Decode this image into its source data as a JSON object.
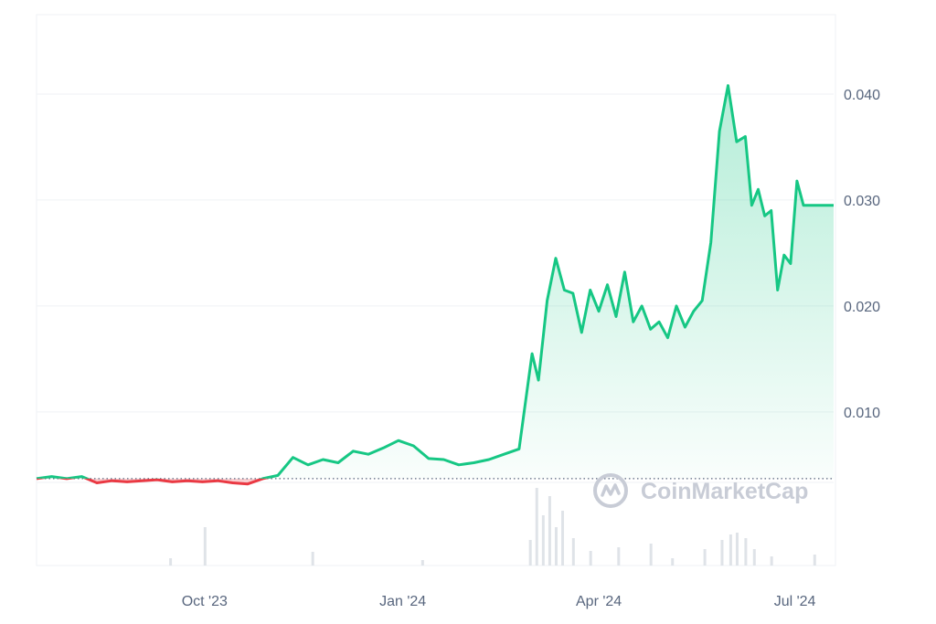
{
  "colors": {
    "up": "#16c784",
    "down": "#ea3943",
    "grid": "#eff2f5",
    "axis_text": "#58667e",
    "volume": "#dfe3e8",
    "watermark": "#c8ccd6"
  },
  "watermark": {
    "text": "CoinMarketCap",
    "icon": "coinmarketcap-logo-icon"
  },
  "chart_data": {
    "type": "area",
    "title": "",
    "xlabel": "",
    "ylabel": "",
    "x_ticks": [
      "Oct '23",
      "Jan '24",
      "Apr '24",
      "Jul '24"
    ],
    "y_ticks": [
      "0.010",
      "0.020",
      "0.030",
      "0.040"
    ],
    "ylim": [
      -0.0045,
      0.0475
    ],
    "grid": true,
    "baseline": 0.0037,
    "legend": "none",
    "series": [
      {
        "x": [
          "2023-07-15",
          "2023-07-22",
          "2023-07-29",
          "2023-08-05",
          "2023-08-12",
          "2023-08-19",
          "2023-08-26",
          "2023-09-02",
          "2023-09-09",
          "2023-09-16",
          "2023-09-23",
          "2023-09-30",
          "2023-10-07",
          "2023-10-14",
          "2023-10-21",
          "2023-10-28",
          "2023-11-04",
          "2023-11-11",
          "2023-11-18",
          "2023-11-25",
          "2023-12-02",
          "2023-12-09",
          "2023-12-16",
          "2023-12-23",
          "2023-12-30",
          "2024-01-06",
          "2024-01-13",
          "2024-01-20",
          "2024-01-27",
          "2024-02-03",
          "2024-02-10",
          "2024-02-17",
          "2024-02-24",
          "2024-03-01",
          "2024-03-04",
          "2024-03-08",
          "2024-03-12",
          "2024-03-16",
          "2024-03-20",
          "2024-03-24",
          "2024-03-28",
          "2024-04-01",
          "2024-04-05",
          "2024-04-09",
          "2024-04-13",
          "2024-04-17",
          "2024-04-21",
          "2024-04-25",
          "2024-04-29",
          "2024-05-03",
          "2024-05-07",
          "2024-05-11",
          "2024-05-15",
          "2024-05-19",
          "2024-05-23",
          "2024-05-27",
          "2024-05-31",
          "2024-06-04",
          "2024-06-08",
          "2024-06-11",
          "2024-06-14",
          "2024-06-17",
          "2024-06-20",
          "2024-06-23",
          "2024-06-26",
          "2024-06-29",
          "2024-07-02",
          "2024-07-05",
          "2024-07-08",
          "2024-07-11",
          "2024-07-14",
          "2024-07-17",
          "2024-07-19"
        ],
        "values": [
          0.0037,
          0.0039,
          0.0037,
          0.0039,
          0.0033,
          0.0035,
          0.0034,
          0.0035,
          0.0036,
          0.0034,
          0.0035,
          0.0034,
          0.0035,
          0.0033,
          0.0032,
          0.0037,
          0.004,
          0.0057,
          0.005,
          0.0055,
          0.0052,
          0.0063,
          0.006,
          0.0066,
          0.0073,
          0.0068,
          0.0056,
          0.0055,
          0.005,
          0.0052,
          0.0055,
          0.006,
          0.0065,
          0.0155,
          0.013,
          0.0205,
          0.0245,
          0.0215,
          0.0212,
          0.0175,
          0.0215,
          0.0195,
          0.022,
          0.019,
          0.0232,
          0.0185,
          0.02,
          0.0178,
          0.0185,
          0.017,
          0.02,
          0.018,
          0.0195,
          0.0205,
          0.026,
          0.0365,
          0.0408,
          0.0355,
          0.036,
          0.0295,
          0.031,
          0.0285,
          0.029,
          0.0215,
          0.0248,
          0.024,
          0.0318,
          0.0295,
          0.0295,
          0.0295,
          0.0295,
          0.0295,
          0.0295
        ]
      }
    ],
    "volume": {
      "x": [
        "2023-09-15",
        "2023-10-01",
        "2023-11-20",
        "2024-01-10",
        "2024-02-29",
        "2024-03-03",
        "2024-03-06",
        "2024-03-09",
        "2024-03-12",
        "2024-03-15",
        "2024-03-20",
        "2024-03-28",
        "2024-04-10",
        "2024-04-25",
        "2024-05-05",
        "2024-05-20",
        "2024-05-28",
        "2024-06-01",
        "2024-06-04",
        "2024-06-08",
        "2024-06-12",
        "2024-06-20",
        "2024-07-10"
      ],
      "values": [
        8,
        42,
        15,
        6,
        28,
        85,
        55,
        76,
        42,
        60,
        30,
        16,
        20,
        24,
        8,
        18,
        28,
        34,
        36,
        30,
        18,
        10,
        12
      ]
    }
  }
}
